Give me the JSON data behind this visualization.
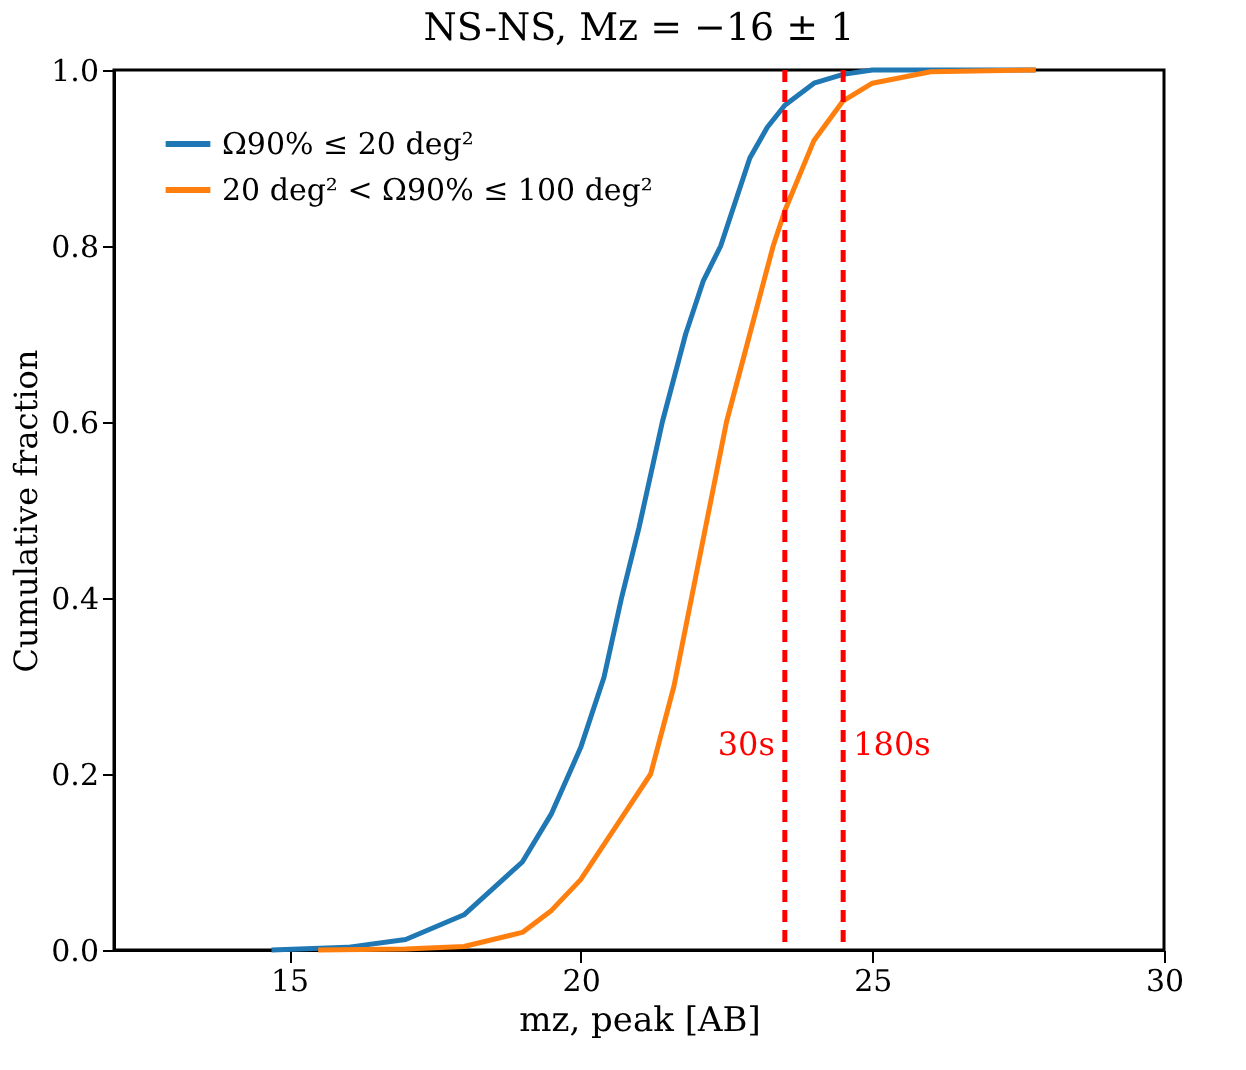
{
  "chart_data": {
    "type": "line",
    "title": "NS-NS, Mz = −16 ± 1",
    "xlabel": "mz, peak [AB]",
    "ylabel": "Cumulative fraction",
    "xlim": [
      12,
      30
    ],
    "xticks": [
      15,
      20,
      25,
      30
    ],
    "ylim": [
      0,
      1.0
    ],
    "yticks": [
      {
        "value": 0,
        "label": "0.0"
      },
      0.2,
      0.4,
      0.6,
      0.8,
      {
        "value": 1,
        "label": "1.0"
      }
    ],
    "grid": false,
    "legend": "top left",
    "line_style": "solid",
    "marker": "none",
    "series": [
      {
        "name": "Ω90% ≤ 20 deg²",
        "color": "#1f77b4",
        "x": [
          14.7,
          16,
          17,
          18,
          19,
          19.5,
          20,
          20.4,
          20.7,
          21,
          21.4,
          21.8,
          22.1,
          22.4,
          22.9,
          23.2,
          23.5,
          24,
          24.5,
          25,
          26,
          27.8
        ],
        "values": [
          0,
          0.003,
          0.012,
          0.04,
          0.1,
          0.155,
          0.23,
          0.31,
          0.4,
          0.48,
          0.6,
          0.7,
          0.76,
          0.8,
          0.9,
          0.935,
          0.96,
          0.985,
          0.995,
          1.0,
          1.0,
          1.0
        ]
      },
      {
        "name": "20 deg² < Ω90% ≤ 100 deg²",
        "color": "#ff7f0e",
        "x": [
          15.5,
          17,
          18,
          19,
          19.5,
          20,
          20.6,
          21.2,
          21.6,
          21.9,
          22.2,
          22.5,
          22.9,
          23.3,
          23.5,
          24,
          24.5,
          25,
          26,
          27.8
        ],
        "values": [
          0,
          0.001,
          0.004,
          0.02,
          0.045,
          0.08,
          0.14,
          0.2,
          0.3,
          0.4,
          0.5,
          0.6,
          0.7,
          0.8,
          0.84,
          0.92,
          0.965,
          0.985,
          0.998,
          1.0
        ]
      }
    ],
    "ref_lines": [
      {
        "axis": "x",
        "value": 23.5,
        "label": "30s",
        "color": "#ff0000",
        "line_style": "dashed"
      },
      {
        "axis": "x",
        "value": 24.5,
        "label": "180s",
        "color": "#ff0000",
        "line_style": "dashed"
      }
    ]
  }
}
